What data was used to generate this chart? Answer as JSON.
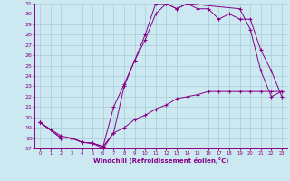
{
  "title": "",
  "xlabel": "Windchill (Refroidissement éolien,°C)",
  "ylabel": "",
  "bg_color": "#cce8f0",
  "grid_color": "#a8ccd8",
  "line_color": "#880088",
  "xlim": [
    -0.5,
    23.5
  ],
  "ylim": [
    17,
    31
  ],
  "xticks": [
    0,
    1,
    2,
    3,
    4,
    5,
    6,
    7,
    8,
    9,
    10,
    11,
    12,
    13,
    14,
    15,
    16,
    17,
    18,
    19,
    20,
    21,
    22,
    23
  ],
  "yticks": [
    17,
    18,
    19,
    20,
    21,
    22,
    23,
    24,
    25,
    26,
    27,
    28,
    29,
    30,
    31
  ],
  "curve1_x": [
    0,
    1,
    2,
    3,
    4,
    5,
    6,
    7,
    8,
    9,
    10,
    11,
    12,
    13,
    14,
    15,
    16,
    17,
    18,
    19,
    20,
    21,
    22,
    23
  ],
  "curve1_y": [
    19.5,
    18.8,
    18.0,
    18.0,
    17.6,
    17.5,
    17.2,
    18.5,
    23.0,
    25.5,
    28.0,
    31.0,
    31.0,
    30.5,
    31.0,
    30.5,
    30.5,
    29.5,
    30.0,
    29.5,
    29.5,
    26.5,
    24.5,
    22.0
  ],
  "curve2_x": [
    0,
    2,
    3,
    4,
    5,
    6,
    7,
    8,
    9,
    10,
    11,
    12,
    13,
    14,
    19,
    20,
    21,
    22,
    23
  ],
  "curve2_y": [
    19.5,
    18.0,
    18.0,
    17.6,
    17.5,
    17.2,
    21.0,
    23.2,
    25.5,
    27.5,
    30.0,
    31.0,
    30.5,
    31.0,
    30.5,
    28.5,
    24.5,
    22.0,
    22.5
  ],
  "curve3_x": [
    0,
    2,
    3,
    4,
    5,
    6,
    7,
    8,
    9,
    10,
    11,
    12,
    13,
    14,
    15,
    16,
    17,
    18,
    19,
    20,
    21,
    22,
    23
  ],
  "curve3_y": [
    19.5,
    18.2,
    18.0,
    17.6,
    17.5,
    17.0,
    18.5,
    19.0,
    19.8,
    20.2,
    20.8,
    21.2,
    21.8,
    22.0,
    22.2,
    22.5,
    22.5,
    22.5,
    22.5,
    22.5,
    22.5,
    22.5,
    22.5
  ]
}
